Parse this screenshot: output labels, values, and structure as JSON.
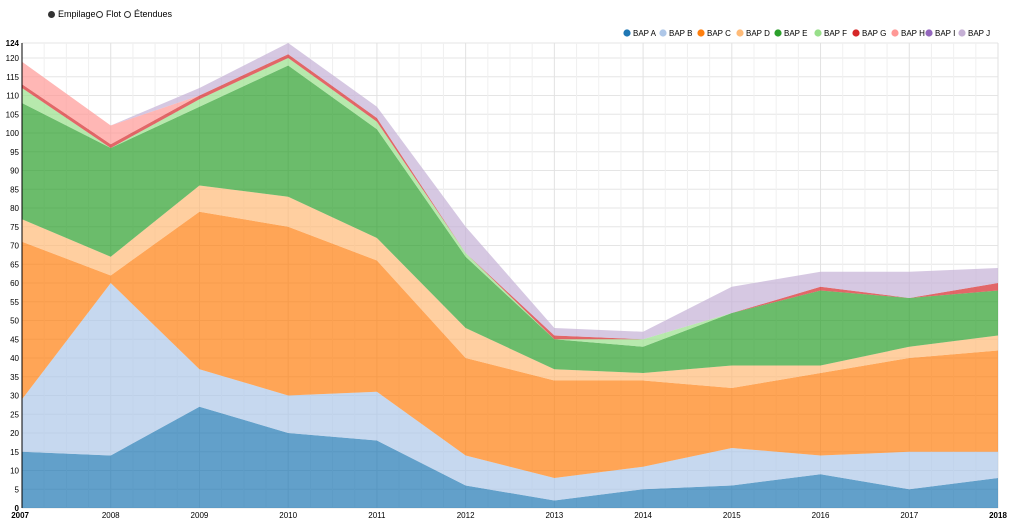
{
  "controls": [
    {
      "label": "Empilage",
      "selected": true
    },
    {
      "label": "Flot",
      "selected": false
    },
    {
      "label": "Étendues",
      "selected": false
    }
  ],
  "chart_data": {
    "type": "area",
    "stacked": true,
    "x": [
      "2007",
      "2008",
      "2009",
      "2010",
      "2011",
      "2012",
      "2013",
      "2014",
      "2015",
      "2016",
      "2017",
      "2018"
    ],
    "ylim": [
      0,
      124
    ],
    "y_ticks": [
      0,
      5,
      10,
      15,
      20,
      25,
      30,
      35,
      40,
      45,
      50,
      55,
      60,
      65,
      70,
      75,
      80,
      85,
      90,
      95,
      100,
      105,
      110,
      115,
      120,
      124
    ],
    "grid": true,
    "legend_position": "top-right",
    "series": [
      {
        "name": "BAP A",
        "color": "#1f77b4",
        "values": [
          15,
          14,
          27,
          20,
          18,
          6,
          2,
          5,
          6,
          9,
          5,
          8
        ]
      },
      {
        "name": "BAP B",
        "color": "#aec7e8",
        "values": [
          14,
          46,
          10,
          10,
          13,
          8,
          6,
          6,
          10,
          5,
          10,
          7
        ]
      },
      {
        "name": "BAP C",
        "color": "#ff7f0e",
        "values": [
          42,
          2,
          42,
          45,
          35,
          26,
          26,
          23,
          16,
          22,
          25,
          27
        ]
      },
      {
        "name": "BAP D",
        "color": "#ffbb78",
        "values": [
          6,
          5,
          7,
          8,
          6,
          8,
          3,
          2,
          6,
          2,
          3,
          4
        ]
      },
      {
        "name": "BAP E",
        "color": "#2ca02c",
        "values": [
          31,
          29,
          21,
          35,
          29,
          19,
          8,
          7,
          14,
          20,
          13,
          12
        ]
      },
      {
        "name": "BAP F",
        "color": "#98df8a",
        "values": [
          4,
          0,
          2,
          2,
          2,
          1,
          0,
          2,
          0,
          0,
          0,
          0
        ]
      },
      {
        "name": "BAP G",
        "color": "#d62728",
        "values": [
          1,
          1,
          1,
          1,
          1,
          0,
          1,
          0,
          0,
          1,
          0,
          2
        ]
      },
      {
        "name": "BAP H",
        "color": "#ff9896",
        "values": [
          6,
          5,
          0,
          0,
          0,
          0,
          0,
          0,
          0,
          0,
          0,
          0
        ]
      },
      {
        "name": "BAP I",
        "color": "#9467bd",
        "values": [
          0,
          0,
          0,
          0,
          0,
          0,
          0,
          0,
          0,
          0,
          0,
          0
        ]
      },
      {
        "name": "BAP J",
        "color": "#c5b0d5",
        "values": [
          0,
          0,
          2,
          3,
          3,
          7,
          2,
          2,
          7,
          4,
          7,
          4
        ]
      }
    ]
  }
}
